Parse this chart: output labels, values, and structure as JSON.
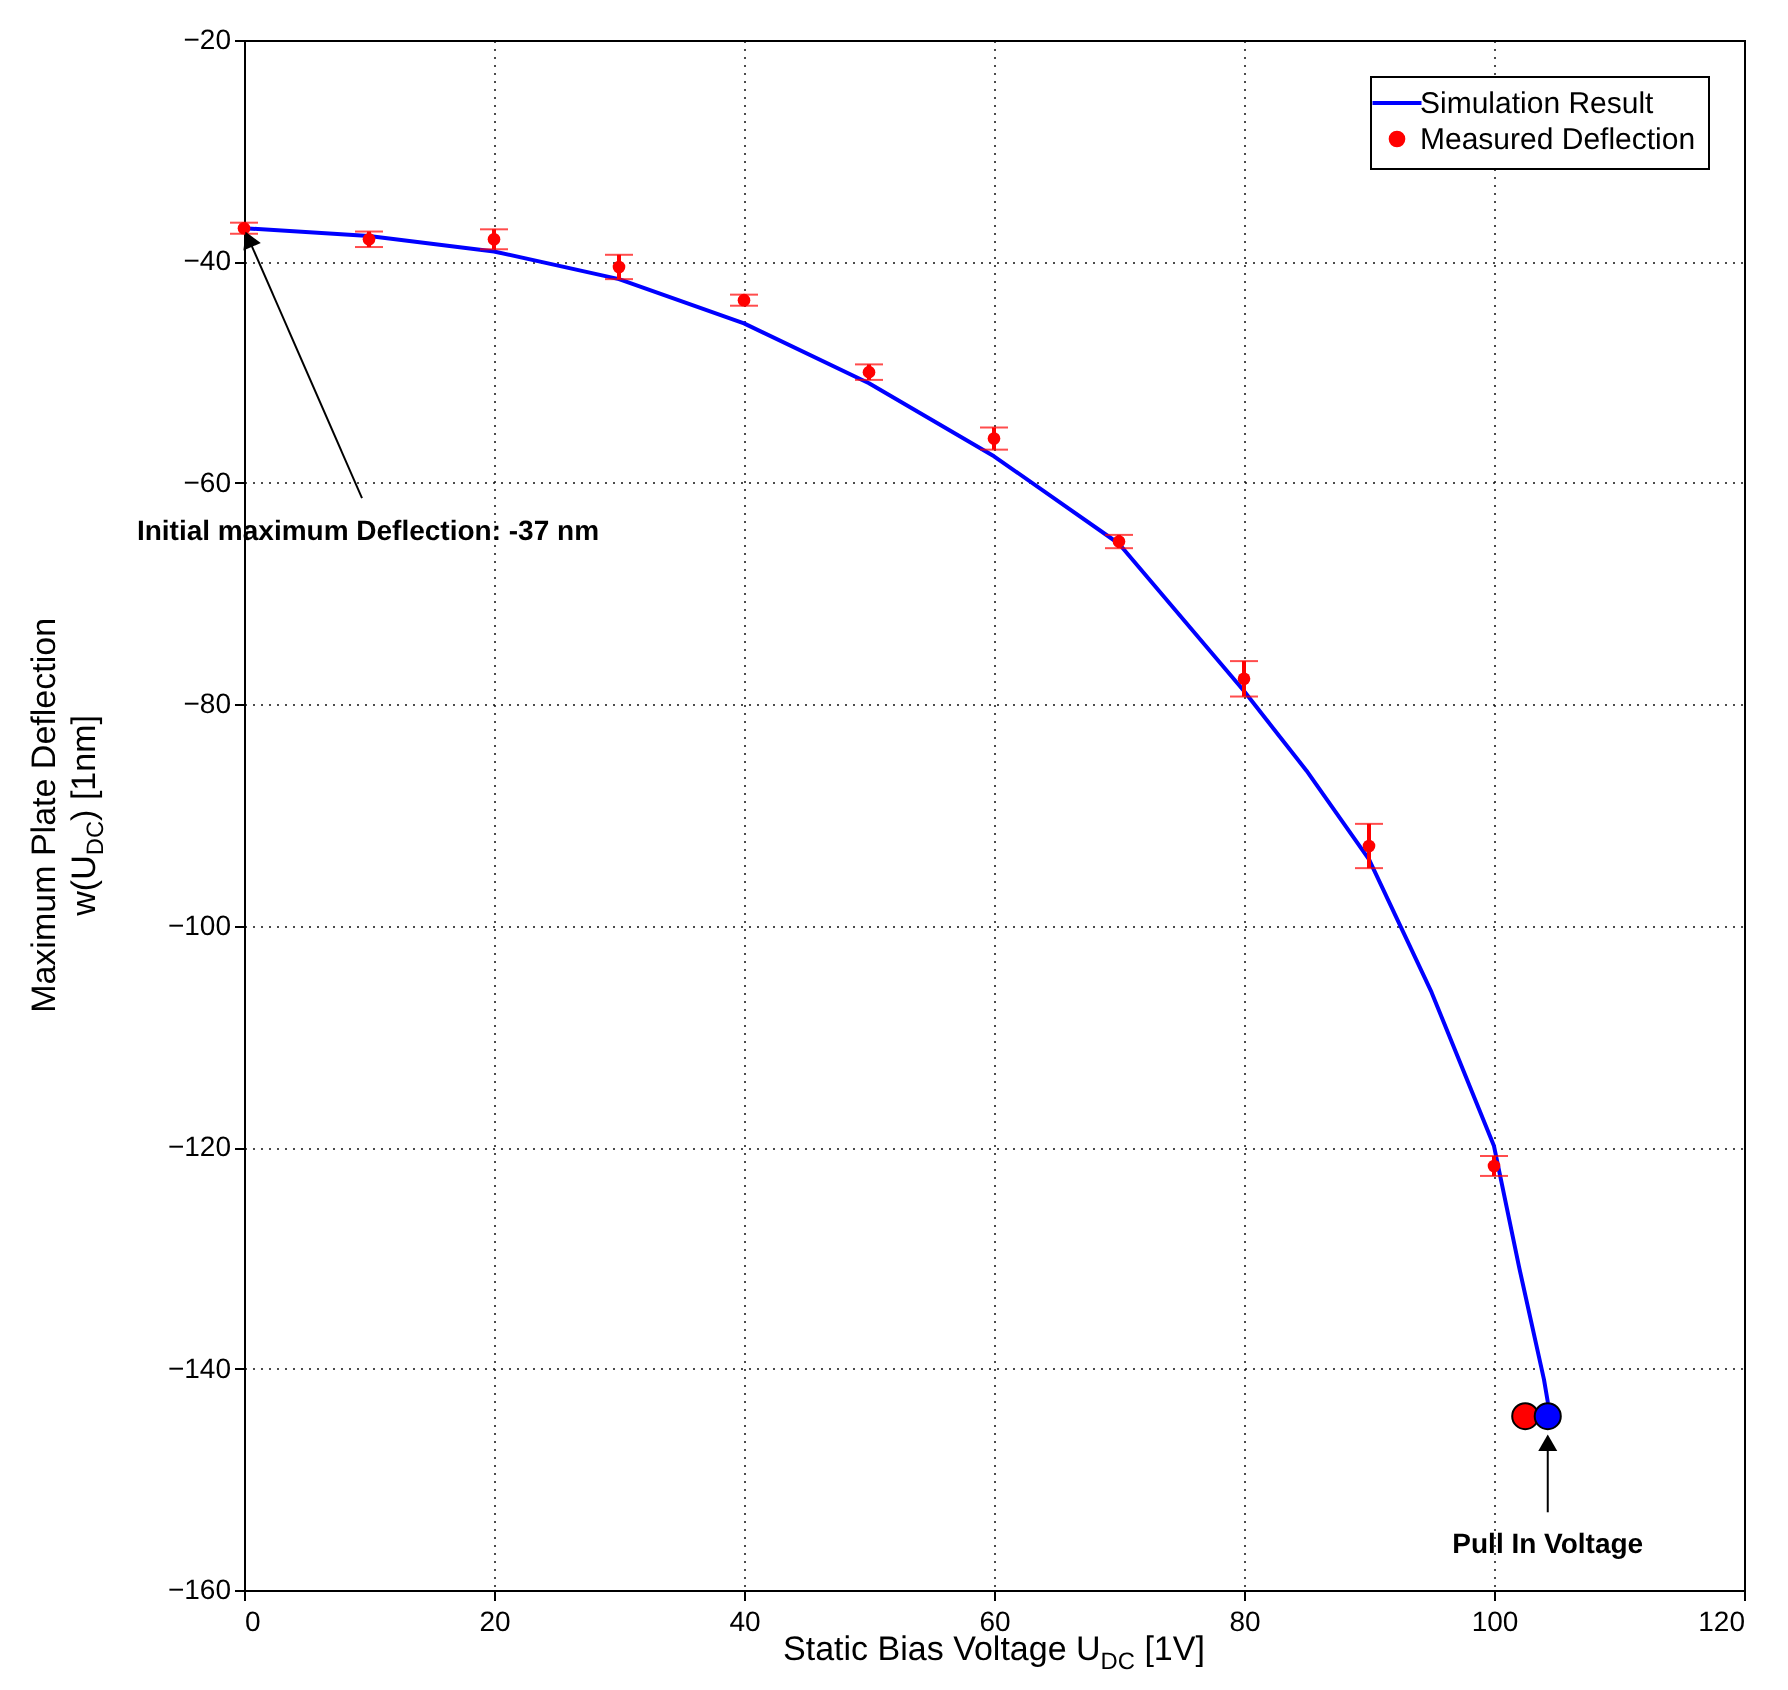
{
  "chart_data": {
    "type": "line",
    "xlabel": "Static Bias Voltage U$_{DC}$  [1V]",
    "ylabel": "Maximum Plate Deflection\nw(U$_{DC}$)  [1nm]",
    "xlim": [
      0,
      120
    ],
    "xticks": [
      0,
      20,
      40,
      60,
      80,
      100,
      120
    ],
    "ylim": [
      -160,
      -20
    ],
    "yticks": [
      -160,
      -140,
      -120,
      -100,
      -80,
      -60,
      -40,
      -20
    ],
    "grid": true,
    "legend": "top right",
    "series": [
      {
        "name": "Simulation Result",
        "color": "#0000ff",
        "x": [
          0,
          10,
          20,
          30,
          40,
          50,
          60,
          70,
          80,
          85,
          90,
          95,
          100,
          102,
          104,
          104.3
        ],
        "values": [
          -37,
          -37.7,
          -39.1,
          -41.6,
          -45.6,
          -51,
          -57.6,
          -65.5,
          -78.8,
          -86,
          -94,
          -106,
          -119.9,
          -130.8,
          -141,
          -143
        ]
      },
      {
        "name": "Measured Deflection",
        "type": "scatter",
        "marker": "circle",
        "color": "#ff0000",
        "x": [
          0,
          10,
          20,
          30,
          40,
          50,
          60,
          70,
          80,
          90,
          100
        ],
        "values": [
          -37,
          -38,
          -38,
          -40.5,
          -43.5,
          -50,
          -56,
          -65.3,
          -77.7,
          -92.8,
          -121.7
        ],
        "errors": [
          0.5,
          0.7,
          0.9,
          1.1,
          0.5,
          0.7,
          1,
          0.6,
          1.6,
          2,
          0.9
        ]
      },
      {
        "type": "scatter",
        "marker": "circle",
        "color": "#ff0000",
        "x": [
          102.5
        ],
        "values": [
          -144.3
        ]
      },
      {
        "type": "scatter",
        "marker": "circle",
        "color": "#0000ff",
        "x": [
          104.3
        ],
        "values": [
          -144.3
        ]
      }
    ],
    "annotations": [
      {
        "text": "Initial maximum Deflection: -37 nm",
        "x": 0,
        "y": -37
      },
      {
        "text": "Pull In Voltage",
        "x": 104.3,
        "y": -145.8
      }
    ]
  }
}
